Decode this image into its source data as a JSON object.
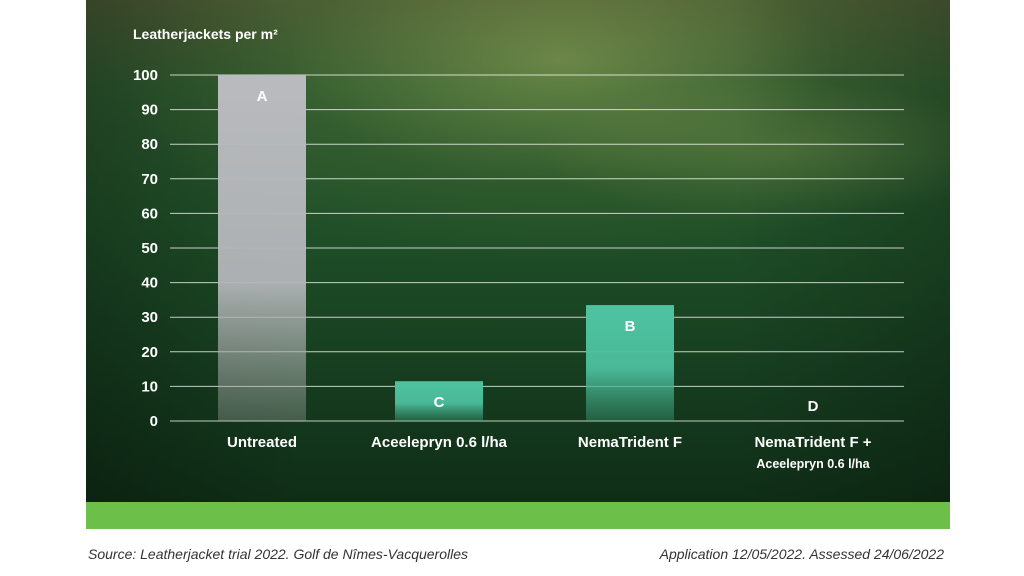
{
  "chart_data": {
    "type": "bar",
    "ylabel": "Leatherjackets per m²",
    "ylim": [
      0,
      100
    ],
    "yticks": [
      0,
      10,
      20,
      30,
      40,
      50,
      60,
      70,
      80,
      90,
      100
    ],
    "grid": true,
    "categories": [
      {
        "label": "Untreated",
        "sublabel": "",
        "value": 100,
        "letter": "A",
        "color": "#b7b9bc"
      },
      {
        "label": "Aceelepryn 0.6 l/ha",
        "sublabel": "",
        "value": 11.5,
        "letter": "C",
        "color": "#4fc0a0"
      },
      {
        "label": "NemaTrident F",
        "sublabel": "",
        "value": 33.5,
        "letter": "B",
        "color": "#4fc0a0"
      },
      {
        "label": "NemaTrident F +",
        "sublabel": "Aceelepryn 0.6 l/ha",
        "value": 0,
        "letter": "D",
        "color": "#4fc0a0"
      }
    ]
  },
  "footer": {
    "source": "Source: Leatherjacket trial 2022. Golf de Nîmes-Vacquerolles",
    "application": "Application 12/05/2022. Assessed 24/06/2022"
  }
}
